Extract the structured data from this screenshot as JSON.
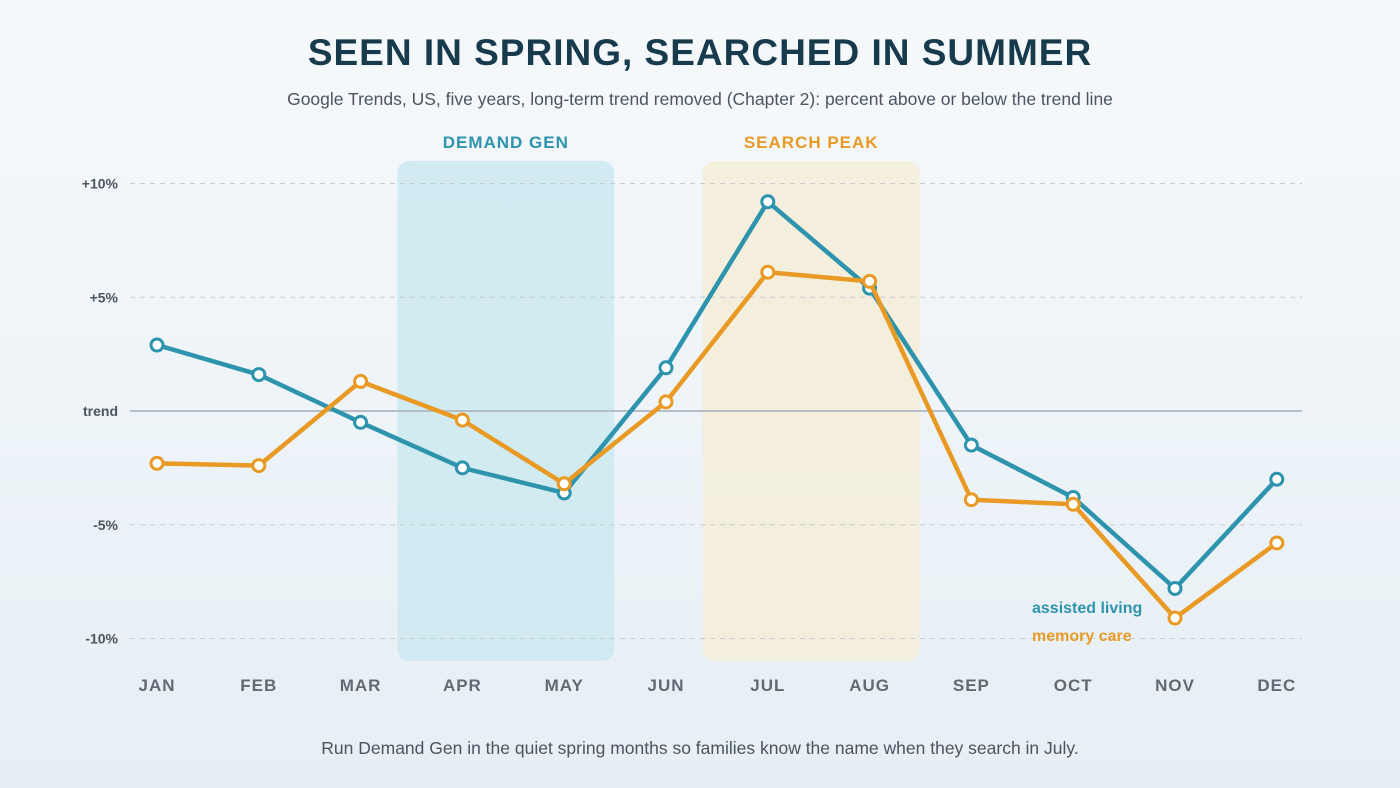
{
  "header": {
    "title": "SEEN IN SPRING, SEARCHED IN SUMMER",
    "subtitle": "Google Trends, US, five years, long-term trend removed (Chapter 2): percent above or below the trend line"
  },
  "footer": {
    "note": "Run Demand Gen in the quiet spring months so families know the name when they search in July."
  },
  "colors": {
    "assisted_living": "#2e93ad",
    "memory_care": "#e89a25",
    "demand_band": "#cde9f0",
    "peak_band": "#f5edd8",
    "title": "#173b4d"
  },
  "chart_data": {
    "type": "line",
    "categories": [
      "JAN",
      "FEB",
      "MAR",
      "APR",
      "MAY",
      "JUN",
      "JUL",
      "AUG",
      "SEP",
      "OCT",
      "NOV",
      "DEC"
    ],
    "series": [
      {
        "name": "assisted living",
        "color": "#2e93ad",
        "values": [
          2.9,
          1.6,
          -0.5,
          -2.5,
          -3.6,
          1.9,
          9.2,
          5.4,
          -1.5,
          -3.8,
          -7.8,
          -3.0
        ]
      },
      {
        "name": "memory care",
        "color": "#e89a25",
        "values": [
          -2.3,
          -2.4,
          1.3,
          -0.4,
          -3.2,
          0.4,
          6.1,
          5.7,
          -3.9,
          -4.1,
          -9.1,
          -5.8
        ]
      }
    ],
    "ylim": [
      -11,
      11
    ],
    "yticks": [
      {
        "value": 10,
        "label": "+10%"
      },
      {
        "value": 5,
        "label": "+5%"
      },
      {
        "value": 0,
        "label": "trend"
      },
      {
        "value": -5,
        "label": "-5%"
      },
      {
        "value": -10,
        "label": "-10%"
      }
    ],
    "bands": [
      {
        "label": "DEMAND GEN",
        "from": "APR",
        "to": "MAY",
        "color": "#cde9f0",
        "label_color": "#2e93ad"
      },
      {
        "label": "SEARCH PEAK",
        "from": "JUL",
        "to": "AUG",
        "color": "#f5edd8",
        "label_color": "#e89a25"
      }
    ],
    "legend": {
      "position": "bottom-right",
      "entries": [
        {
          "label": "assisted living",
          "color": "#2e93ad"
        },
        {
          "label": "memory care",
          "color": "#e89a25"
        }
      ]
    },
    "grid": true
  }
}
